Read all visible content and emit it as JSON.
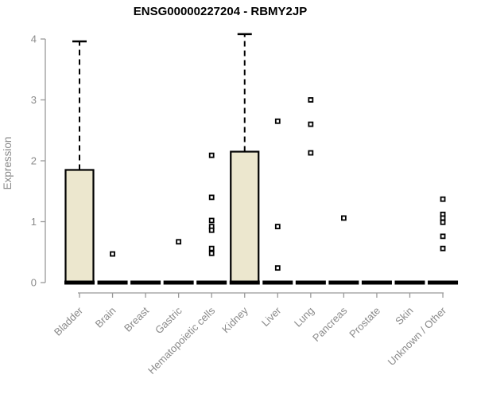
{
  "chart_data": {
    "type": "boxplot",
    "title": "ENSG00000227204 - RBMY2JP",
    "ylabel": "Expression",
    "xlabel": "",
    "ylim": [
      0,
      4.2
    ],
    "yticks": [
      0,
      1,
      2,
      3,
      4
    ],
    "grid": false,
    "legend": null,
    "colors": {
      "box_fill": "#ece7ce",
      "box_stroke": "#000000",
      "axis_line": "#999999",
      "axis_text": "#8a8a8a",
      "title_text": "#000000",
      "background": "#ffffff"
    },
    "categories": [
      "Bladder",
      "Brain",
      "Breast",
      "Gastric",
      "Hematopoietic cells",
      "Kidney",
      "Liver",
      "Lung",
      "Pancreas",
      "Prostate",
      "Skin",
      "Unknown / Other"
    ],
    "boxes": [
      {
        "category": "Bladder",
        "q1": 0,
        "median": 0,
        "q3": 1.85,
        "whisker_low": 0,
        "whisker_high": 3.96,
        "outliers": []
      },
      {
        "category": "Brain",
        "q1": 0,
        "median": 0,
        "q3": 0,
        "whisker_low": 0,
        "whisker_high": 0,
        "outliers": [
          0.47
        ]
      },
      {
        "category": "Breast",
        "q1": 0,
        "median": 0,
        "q3": 0,
        "whisker_low": 0,
        "whisker_high": 0,
        "outliers": []
      },
      {
        "category": "Gastric",
        "q1": 0,
        "median": 0,
        "q3": 0,
        "whisker_low": 0,
        "whisker_high": 0,
        "outliers": [
          0.67
        ]
      },
      {
        "category": "Hematopoietic cells",
        "q1": 0,
        "median": 0,
        "q3": 0,
        "whisker_low": 0,
        "whisker_high": 0,
        "outliers": [
          2.09,
          1.4,
          1.02,
          0.92,
          0.86,
          0.56,
          0.48
        ]
      },
      {
        "category": "Kidney",
        "q1": 0,
        "median": 0,
        "q3": 2.15,
        "whisker_low": 0,
        "whisker_high": 4.08,
        "outliers": []
      },
      {
        "category": "Liver",
        "q1": 0,
        "median": 0,
        "q3": 0,
        "whisker_low": 0,
        "whisker_high": 0,
        "outliers": [
          2.65,
          0.92,
          0.24
        ]
      },
      {
        "category": "Lung",
        "q1": 0,
        "median": 0,
        "q3": 0,
        "whisker_low": 0,
        "whisker_high": 0,
        "outliers": [
          3.0,
          2.6,
          2.13
        ]
      },
      {
        "category": "Pancreas",
        "q1": 0,
        "median": 0,
        "q3": 0,
        "whisker_low": 0,
        "whisker_high": 0,
        "outliers": [
          1.06
        ]
      },
      {
        "category": "Prostate",
        "q1": 0,
        "median": 0,
        "q3": 0,
        "whisker_low": 0,
        "whisker_high": 0,
        "outliers": []
      },
      {
        "category": "Skin",
        "q1": 0,
        "median": 0,
        "q3": 0,
        "whisker_low": 0,
        "whisker_high": 0,
        "outliers": []
      },
      {
        "category": "Unknown / Other",
        "q1": 0,
        "median": 0,
        "q3": 0,
        "whisker_low": 0,
        "whisker_high": 0,
        "outliers": [
          1.37,
          1.12,
          1.06,
          0.99,
          0.76,
          0.56
        ]
      }
    ]
  }
}
